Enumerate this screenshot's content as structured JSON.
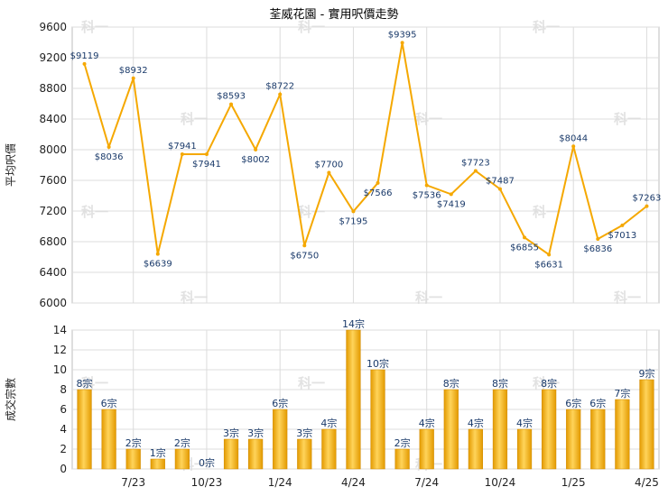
{
  "title": "荃威花園 - 實用呎價走勢",
  "colors": {
    "line": "#f5a800",
    "bar_light": "#ffd45a",
    "bar_dark": "#e39a00",
    "grid": "#dcdcdc",
    "label": "#1a3a6a"
  },
  "chart_data": [
    {
      "type": "line",
      "title": "荃威花園 - 實用呎價走勢",
      "ylabel": "平均呎價",
      "ylim": [
        6000,
        9600
      ],
      "yticks": [
        6000,
        6400,
        6800,
        7200,
        7600,
        8000,
        8400,
        8800,
        9200,
        9600
      ],
      "x": [
        "5/23",
        "6/23",
        "7/23",
        "8/23",
        "9/23",
        "10/23",
        "11/23",
        "12/23",
        "1/24",
        "2/24",
        "3/24",
        "4/24",
        "5/24",
        "6/24",
        "7/24",
        "8/24",
        "9/24",
        "10/24",
        "11/24",
        "12/24",
        "1/25",
        "2/25",
        "3/25",
        "4/25"
      ],
      "values": [
        9119,
        8036,
        8932,
        6639,
        7941,
        7941,
        8593,
        8002,
        8722,
        6750,
        7700,
        7195,
        7566,
        9395,
        7536,
        7419,
        7723,
        7487,
        6855,
        6631,
        8044,
        6836,
        7013,
        7263
      ],
      "labels": [
        "$9119",
        "$8036",
        "$8932",
        "$6639",
        "$7941",
        "$7941",
        "$8593",
        "$8002",
        "$8722",
        "$6750",
        "$7700",
        "$7195",
        "$7566",
        "$9395",
        "$7536",
        "$7419",
        "$7723",
        "$7487",
        "$6855",
        "$6631",
        "$8044",
        "$6836",
        "$7013",
        "$7263"
      ]
    },
    {
      "type": "bar",
      "ylabel": "成交宗數",
      "ylim": [
        0,
        14
      ],
      "yticks": [
        0,
        2,
        4,
        6,
        8,
        10,
        12,
        14
      ],
      "categories": [
        "5/23",
        "6/23",
        "7/23",
        "8/23",
        "9/23",
        "10/23",
        "11/23",
        "12/23",
        "1/24",
        "2/24",
        "3/24",
        "4/24",
        "5/24",
        "6/24",
        "7/24",
        "8/24",
        "9/24",
        "10/24",
        "11/24",
        "12/24",
        "1/25",
        "2/25",
        "3/25",
        "4/25"
      ],
      "values": [
        8,
        6,
        2,
        1,
        2,
        0,
        3,
        3,
        6,
        3,
        4,
        14,
        10,
        2,
        4,
        8,
        4,
        8,
        4,
        8,
        6,
        6,
        7,
        9
      ],
      "labels": [
        "8宗",
        "6宗",
        "2宗",
        "1宗",
        "2宗",
        "0宗",
        "3宗",
        "3宗",
        "6宗",
        "3宗",
        "4宗",
        "14宗",
        "10宗",
        "2宗",
        "4宗",
        "8宗",
        "4宗",
        "8宗",
        "4宗",
        "8宗",
        "6宗",
        "6宗",
        "7宗",
        "9宗"
      ],
      "xticks_shown": [
        "7/23",
        "10/23",
        "1/24",
        "4/24",
        "7/24",
        "10/24",
        "1/25",
        "4/25"
      ]
    }
  ],
  "watermark": "科一"
}
